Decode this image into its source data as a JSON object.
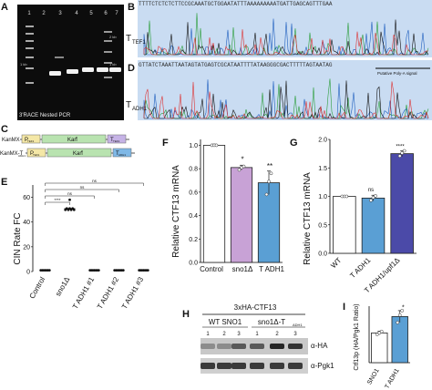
{
  "panels": {
    "A": {
      "letter": "A",
      "caption": "3'RACE Nested PCR",
      "lanes": [
        "1",
        "2",
        "3",
        "4",
        "5",
        "6",
        "7"
      ],
      "ladder_labels": [
        "1 kb",
        "2 kb",
        "1 kb"
      ]
    },
    "B": {
      "letter": "B",
      "label_main": "T",
      "label_sub": "TEF1",
      "sequence": "TTTTCTCTCTCTTCCGCAAATGCTGGAATATTTAAAAAAAAATGATTGAGCAGTTTGAA"
    },
    "D": {
      "letter": "D",
      "label_main": "T",
      "label_sub": "ADH1",
      "sequence": "GTTATCTAAATTAATAGTATGAGTCGCATAATTTTATAAGGGCGACTTTTTAGTAATAG",
      "annotation": "Putative Poly-A signal"
    },
    "C": {
      "letter": "C",
      "constructs": [
        {
          "name": "KanMX",
          "promoter": "P",
          "promoter_sub": "TEF1",
          "gene": "Kan",
          "gene_sup": "R",
          "terminator": "T",
          "terminator_sub": "TEF1"
        },
        {
          "name": "KanMX-T",
          "name_sub": "ADH1",
          "promoter": "P",
          "promoter_sub": "TEF1",
          "gene": "Kan",
          "gene_sup": "R",
          "terminator": "T",
          "terminator_sub": "ADH1"
        }
      ]
    },
    "E": {
      "letter": "E",
      "ylabel": "CIN Rate FC",
      "yticks": [
        "0",
        "20",
        "40",
        "60"
      ],
      "significance": [
        "****",
        "ns",
        "ns",
        "ns"
      ],
      "categories": [
        "Control",
        "sno1Δ",
        "T ADH1 #1",
        "T ADH1 #2",
        "T ADH1 #3"
      ]
    },
    "F": {
      "letter": "F",
      "ylabel": "Relative CTF13 mRNA",
      "yticks": [
        "0.0",
        "0.2",
        "0.4",
        "0.6",
        "0.8",
        "1.0"
      ],
      "significance": [
        "*",
        "**"
      ],
      "categories": [
        "Control",
        "sno1Δ",
        "T ADH1"
      ]
    },
    "G": {
      "letter": "G",
      "ylabel": "Relative CTF13 mRNA",
      "yticks": [
        "0.0",
        "0.5",
        "1.0",
        "1.5",
        "2.0"
      ],
      "significance": [
        "ns",
        "****"
      ],
      "categories": [
        "WT",
        "T ADH1",
        "T ADH1/upf1Δ"
      ]
    },
    "H": {
      "letter": "H",
      "title": "3xHA-CTF13",
      "group1": "WT SNO1",
      "group2": "sno1Δ-T",
      "group2_sub": "ADH1",
      "lanes": [
        "1",
        "2",
        "3",
        "1",
        "2",
        "3"
      ],
      "blot1": "α-HA",
      "blot2": "α-Pgk1"
    },
    "I": {
      "letter": "I",
      "ylabel": "Ctf13p (HA/Pgk1 Ratio)",
      "significance": "*",
      "categories": [
        "SNO1",
        "T ADH1"
      ]
    }
  },
  "chart_data": [
    {
      "type": "scatter",
      "panel": "E",
      "ylabel": "CIN Rate FC",
      "ylim": [
        0,
        70
      ],
      "categories": [
        "Control",
        "sno1Δ",
        "T ADH1 #1",
        "T ADH1 #2",
        "T ADH1 #3"
      ],
      "values": [
        1,
        51,
        1,
        1,
        1
      ]
    },
    {
      "type": "bar",
      "panel": "F",
      "ylabel": "Relative CTF13 mRNA",
      "ylim": [
        0,
        1.05
      ],
      "categories": [
        "Control",
        "sno1Δ",
        "T ADH1"
      ],
      "values": [
        1.0,
        0.81,
        0.68
      ],
      "errors": [
        0.01,
        0.02,
        0.1
      ],
      "points": [
        [
          1.0,
          1.0,
          1.0
        ],
        [
          0.79,
          0.81,
          0.82
        ],
        [
          0.58,
          0.69,
          0.76
        ]
      ],
      "colors": [
        "#ffffff",
        "#c8a2d6",
        "#5a9fd4"
      ]
    },
    {
      "type": "bar",
      "panel": "G",
      "ylabel": "Relative CTF13 mRNA",
      "ylim": [
        0,
        2.0
      ],
      "categories": [
        "WT",
        "T ADH1",
        "T ADH1/upf1Δ"
      ],
      "values": [
        1.0,
        0.97,
        1.75
      ],
      "errors": [
        0.01,
        0.05,
        0.05
      ],
      "points": [
        [
          1.0,
          1.0,
          1.0
        ],
        [
          0.93,
          0.98,
          1.01
        ],
        [
          1.71,
          1.76,
          1.8
        ]
      ],
      "colors": [
        "#ffffff",
        "#5a9fd4",
        "#4b4aa8"
      ]
    },
    {
      "type": "bar",
      "panel": "I",
      "ylabel": "Ctf13p (HA/Pgk1 Ratio)",
      "categories": [
        "SNO1",
        "T ADH1"
      ],
      "values": [
        1.0,
        1.55
      ],
      "errors": [
        0.06,
        0.2
      ],
      "points": [
        [
          0.95,
          1.0,
          1.05
        ],
        [
          1.35,
          1.6,
          1.75
        ]
      ],
      "colors": [
        "#ffffff",
        "#5a9fd4"
      ]
    }
  ]
}
